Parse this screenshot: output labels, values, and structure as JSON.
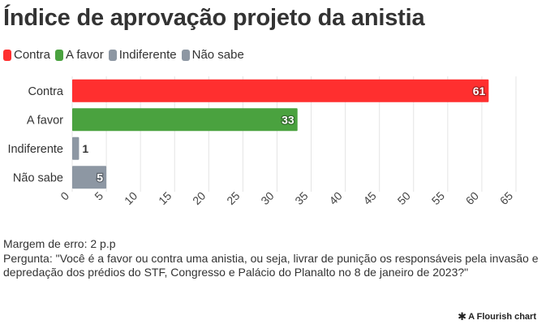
{
  "title": "Índice de aprovação projeto da anistia",
  "legend": [
    {
      "label": "Contra",
      "color": "#ff2f2f"
    },
    {
      "label": "A favor",
      "color": "#4aa23f"
    },
    {
      "label": "Indiferente",
      "color": "#8d97a3"
    },
    {
      "label": "Não sabe",
      "color": "#8d97a3"
    }
  ],
  "chart_data": {
    "type": "bar",
    "orientation": "horizontal",
    "title": "Índice de aprovação projeto da anistia",
    "categories": [
      "Contra",
      "A favor",
      "Indiferente",
      "Não sabe"
    ],
    "values": [
      61,
      33,
      1,
      5
    ],
    "colors": [
      "#ff2f2f",
      "#4aa23f",
      "#8d97a3",
      "#8d97a3"
    ],
    "xlim": [
      0,
      65
    ],
    "xticks": [
      0,
      5,
      10,
      15,
      20,
      25,
      30,
      35,
      40,
      45,
      50,
      55,
      60,
      65
    ],
    "grid": true,
    "legend_position": "top-left"
  },
  "notes": {
    "margin": "Margem de erro: 2 p.p",
    "question": "Pergunta: \"Você é a favor ou contra uma anistia, ou seja, livrar de punição os responsáveis pela invasão e depredação dos prédios do STF, Congresso e Palácio do Planalto no 8 de janeiro de 2023?\""
  },
  "credit": {
    "icon": "flourish-logo-icon",
    "label": "A Flourish chart"
  }
}
